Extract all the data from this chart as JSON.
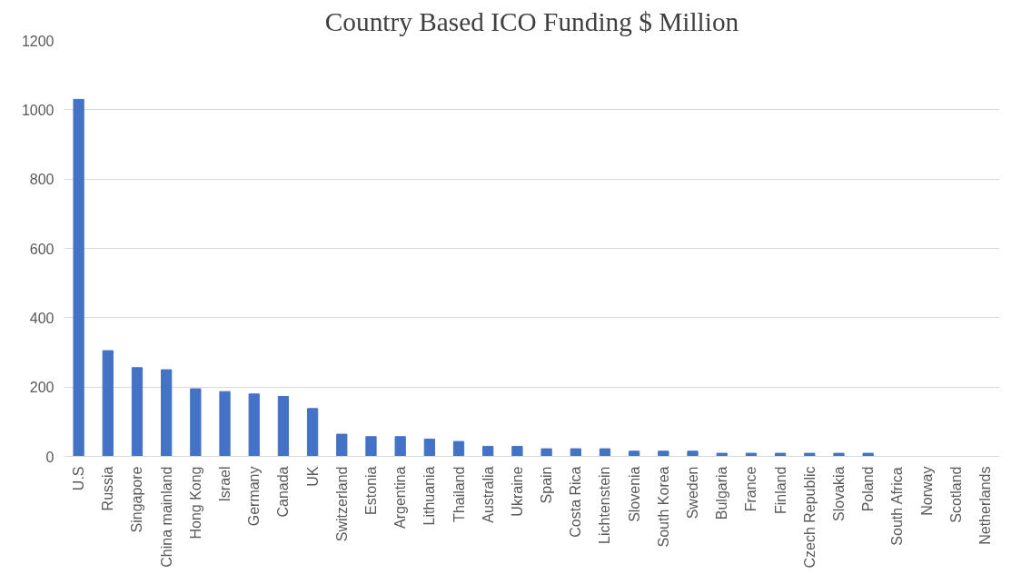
{
  "chart_data": {
    "type": "bar",
    "title": "Country Based ICO Funding $ Million",
    "categories": [
      "U.S",
      "Russia",
      "Singapore",
      "China mainland",
      "Hong Kong",
      "Israel",
      "Germany",
      "Canada",
      "UK",
      "Switzerland",
      "Estonia",
      "Argentina",
      "Lithuania",
      "Thailand",
      "Australia",
      "Ukraine",
      "Spain",
      "Costa Rica",
      "Lichtenstein",
      "Slovenia",
      "South Korea",
      "Sweden",
      "Bulgaria",
      "France",
      "Finland",
      "Czech Republic",
      "Slovakia",
      "Poland",
      "South Africa",
      "Norway",
      "Scotland",
      "Netherlands"
    ],
    "values": [
      1030,
      305,
      256,
      250,
      195,
      187,
      180,
      173,
      138,
      64,
      57,
      57,
      50,
      43,
      29,
      29,
      22,
      22,
      22,
      15,
      15,
      15,
      9,
      9,
      9,
      9,
      9,
      9,
      0,
      0,
      0,
      0
    ],
    "color": "#4472c4",
    "ylim": [
      0,
      1200
    ],
    "yticks": [
      0,
      200,
      400,
      600,
      800,
      1000,
      1200
    ],
    "grid": "y"
  }
}
